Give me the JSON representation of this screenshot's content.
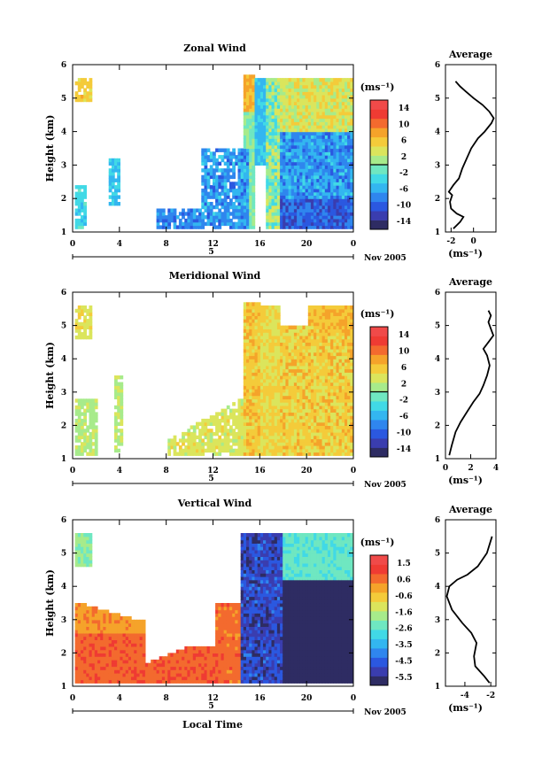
{
  "figure": {
    "date_label": "Nov 2005",
    "day_label": "5",
    "xlabel": "Local Time"
  },
  "chart_data": [
    {
      "type": "heatmap",
      "title": "Zonal Wind",
      "ylabel": "Height (km)",
      "unit": "(ms⁻¹)",
      "xticks": [
        "0",
        "4",
        "8",
        "12",
        "16",
        "20",
        "0"
      ],
      "xlim": [
        0,
        24
      ],
      "ylim": [
        1,
        6
      ],
      "yticks": [
        "1",
        "2",
        "3",
        "4",
        "5",
        "6"
      ],
      "colorbar": {
        "ticks": [
          "14",
          "10",
          "6",
          "2",
          "-2",
          "-6",
          "-10",
          "-14"
        ],
        "range": [
          -16,
          16
        ]
      },
      "profile": {
        "title": "Average",
        "xlim": [
          -2.5,
          2
        ],
        "xticks": [
          "-2",
          "0"
        ],
        "xvals": [
          -2,
          0
        ],
        "xlabel": "(ms⁻¹)",
        "points": [
          [
            -1.8,
            1.1
          ],
          [
            -1.2,
            1.3
          ],
          [
            -0.9,
            1.45
          ],
          [
            -1.5,
            1.55
          ],
          [
            -2.0,
            1.7
          ],
          [
            -2.1,
            1.9
          ],
          [
            -1.9,
            2.1
          ],
          [
            -2.2,
            2.2
          ],
          [
            -1.8,
            2.4
          ],
          [
            -1.3,
            2.6
          ],
          [
            -1.0,
            2.9
          ],
          [
            -0.6,
            3.2
          ],
          [
            -0.2,
            3.5
          ],
          [
            0.4,
            3.8
          ],
          [
            1.0,
            4.0
          ],
          [
            1.6,
            4.25
          ],
          [
            1.8,
            4.4
          ],
          [
            1.4,
            4.6
          ],
          [
            0.8,
            4.8
          ],
          [
            0.0,
            5.0
          ],
          [
            -0.7,
            5.2
          ],
          [
            -1.2,
            5.35
          ],
          [
            -1.6,
            5.5
          ]
        ]
      }
    },
    {
      "type": "heatmap",
      "title": "Meridional Wind",
      "ylabel": "Height (km)",
      "unit": "(ms⁻¹)",
      "xticks": [
        "0",
        "4",
        "8",
        "12",
        "16",
        "20",
        "0"
      ],
      "xlim": [
        0,
        24
      ],
      "ylim": [
        1,
        6
      ],
      "yticks": [
        "1",
        "2",
        "3",
        "4",
        "5",
        "6"
      ],
      "colorbar": {
        "ticks": [
          "14",
          "10",
          "6",
          "2",
          "-2",
          "-6",
          "-10",
          "-14"
        ],
        "range": [
          -16,
          16
        ]
      },
      "profile": {
        "title": "Average",
        "xlim": [
          0,
          4
        ],
        "xticks": [
          "0",
          "2",
          "4"
        ],
        "xvals": [
          0,
          2,
          4
        ],
        "xlabel": "(ms⁻¹)",
        "points": [
          [
            0.3,
            1.1
          ],
          [
            0.5,
            1.4
          ],
          [
            0.8,
            1.8
          ],
          [
            1.2,
            2.1
          ],
          [
            1.7,
            2.4
          ],
          [
            2.2,
            2.7
          ],
          [
            2.7,
            2.95
          ],
          [
            3.0,
            3.2
          ],
          [
            3.3,
            3.5
          ],
          [
            3.5,
            3.8
          ],
          [
            3.3,
            4.1
          ],
          [
            3.0,
            4.3
          ],
          [
            3.4,
            4.5
          ],
          [
            3.8,
            4.7
          ],
          [
            3.6,
            4.9
          ],
          [
            3.4,
            5.1
          ],
          [
            3.6,
            5.3
          ],
          [
            3.4,
            5.45
          ]
        ]
      }
    },
    {
      "type": "heatmap",
      "title": "Vertical Wind",
      "ylabel": "Height (km)",
      "unit": "(ms⁻¹)",
      "xticks": [
        "0",
        "4",
        "8",
        "12",
        "16",
        "20",
        "0"
      ],
      "xlim": [
        0,
        24
      ],
      "ylim": [
        1,
        6
      ],
      "yticks": [
        "1",
        "2",
        "3",
        "4",
        "5",
        "6"
      ],
      "colorbar": {
        "ticks": [
          "1.5",
          "0.6",
          "-0.6",
          "-1.6",
          "-2.6",
          "-3.5",
          "-4.5",
          "-5.5"
        ],
        "range": [
          -6,
          2
        ]
      },
      "profile": {
        "title": "Average",
        "xlim": [
          -5.5,
          -1.6
        ],
        "xticks": [
          "-4",
          "-2"
        ],
        "xvals": [
          -4,
          -2
        ],
        "xlabel": "(ms⁻¹)",
        "points": [
          [
            -2.1,
            1.1
          ],
          [
            -2.5,
            1.3
          ],
          [
            -3.2,
            1.6
          ],
          [
            -3.3,
            1.9
          ],
          [
            -3.1,
            2.3
          ],
          [
            -3.5,
            2.6
          ],
          [
            -4.2,
            2.9
          ],
          [
            -5.0,
            3.3
          ],
          [
            -5.4,
            3.7
          ],
          [
            -5.2,
            4.0
          ],
          [
            -4.6,
            4.2
          ],
          [
            -3.8,
            4.35
          ],
          [
            -3.0,
            4.6
          ],
          [
            -2.3,
            5.0
          ],
          [
            -1.9,
            5.5
          ]
        ]
      }
    }
  ]
}
